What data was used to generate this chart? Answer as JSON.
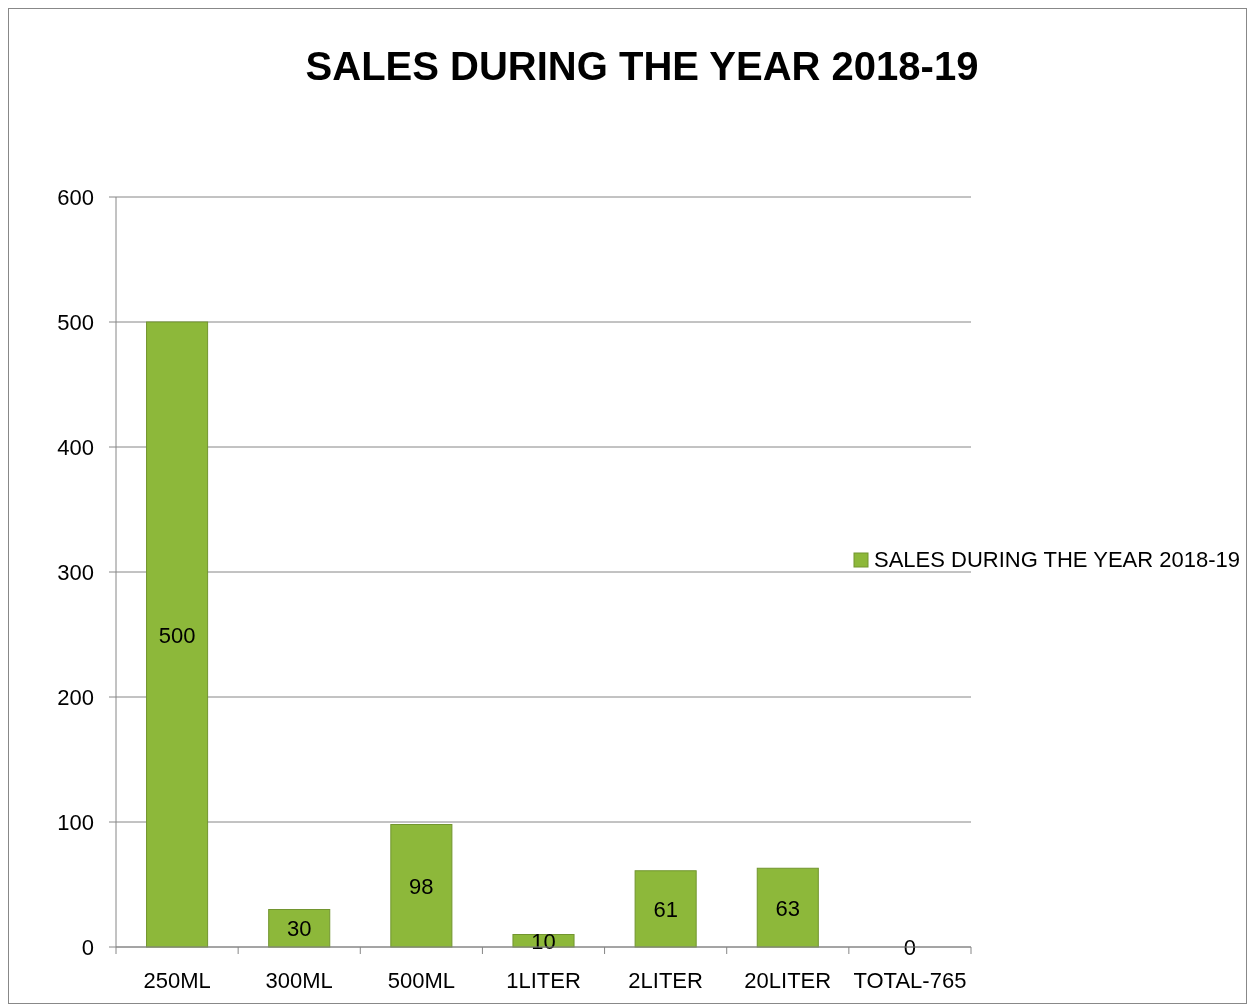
{
  "chart_data": {
    "type": "bar",
    "title": "SALES DURING THE YEAR 2018-19",
    "categories": [
      "250ML",
      "300ML",
      "500ML",
      "1LITER",
      "2LITER",
      "20LITER",
      "TOTAL-765"
    ],
    "series": [
      {
        "name": "SALES DURING THE YEAR 2018-19",
        "color": "#8db83a",
        "values": [
          500,
          30,
          98,
          10,
          61,
          63,
          0
        ]
      }
    ],
    "ylim": [
      0,
      600
    ],
    "yticks": [
      0,
      100,
      200,
      300,
      400,
      500,
      600
    ],
    "grid": "y",
    "legend": "right",
    "data_labels": true
  }
}
